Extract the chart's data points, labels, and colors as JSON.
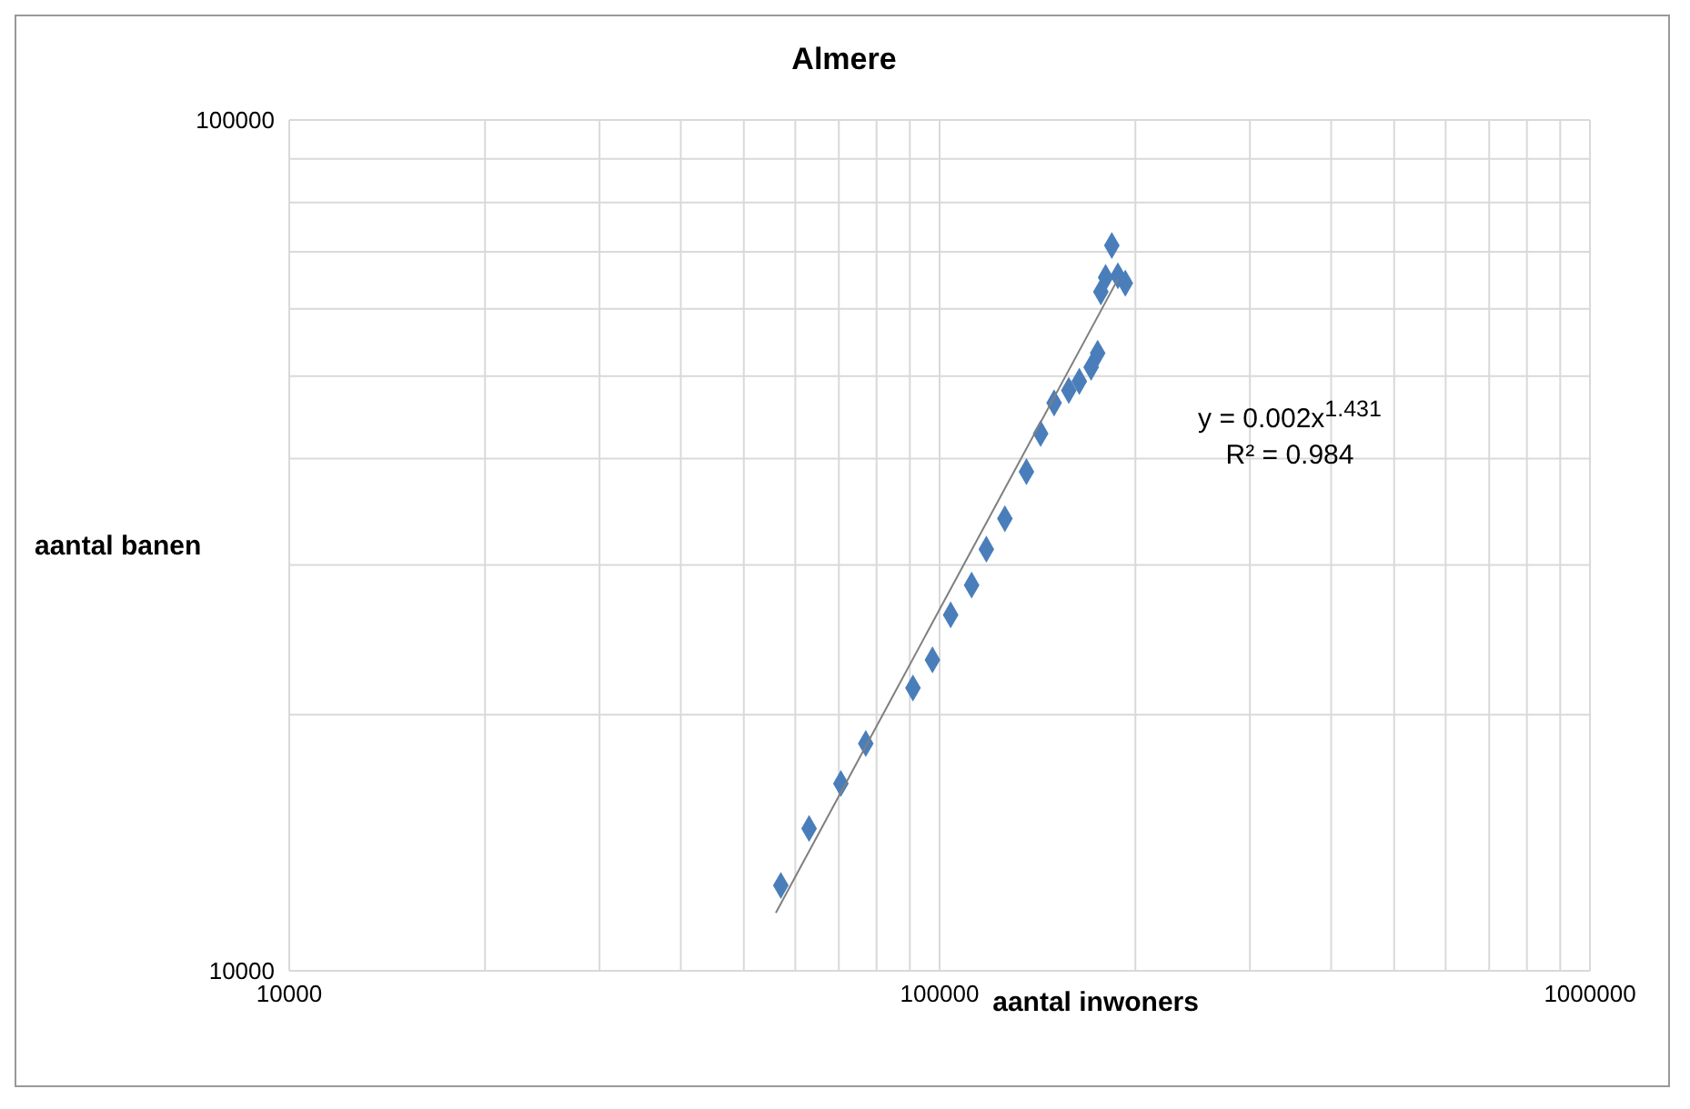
{
  "chart_data": {
    "type": "scatter",
    "title": "Almere",
    "xlabel": "aantal inwoners",
    "ylabel": "aantal banen",
    "annotations": [
      "y = 0.002x$^{1.431}$",
      "R² = 0.984"
    ],
    "log": "xy",
    "grid": true,
    "marker": "diamond",
    "xlim": [
      10000,
      1000000
    ],
    "xticks": [
      10000,
      {
        "value": 20000,
        "label": null
      },
      {
        "value": 30000,
        "label": null
      },
      {
        "value": 40000,
        "label": null
      },
      {
        "value": 50000,
        "label": null
      },
      {
        "value": 60000,
        "label": null
      },
      {
        "value": 70000,
        "label": null
      },
      {
        "value": 80000,
        "label": null
      },
      {
        "value": 90000,
        "label": null
      },
      100000,
      {
        "value": 200000,
        "label": null
      },
      {
        "value": 300000,
        "label": null
      },
      {
        "value": 400000,
        "label": null
      },
      {
        "value": 500000,
        "label": null
      },
      {
        "value": 600000,
        "label": null
      },
      {
        "value": 700000,
        "label": null
      },
      {
        "value": 800000,
        "label": null
      },
      {
        "value": 900000,
        "label": null
      },
      1000000
    ],
    "ylim": [
      10000,
      100000
    ],
    "yticks": [
      10000,
      {
        "value": 20000,
        "label": null
      },
      {
        "value": 30000,
        "label": null
      },
      {
        "value": 40000,
        "label": null
      },
      {
        "value": 50000,
        "label": null
      },
      {
        "value": 60000,
        "label": null
      },
      {
        "value": 70000,
        "label": null
      },
      {
        "value": 80000,
        "label": null
      },
      {
        "value": 90000,
        "label": null
      },
      100000
    ],
    "series": [
      {
        "color": "#4a7ebb",
        "x": [
          57000,
          63000,
          70500,
          77000,
          91000,
          97500,
          104000,
          112000,
          118000,
          126000,
          136000,
          143000,
          150000,
          158000,
          164000,
          171000,
          175000,
          177000,
          180000,
          184000,
          188000,
          193000
        ],
        "values": [
          12600,
          14700,
          16600,
          18500,
          21500,
          23200,
          26200,
          28400,
          31300,
          34000,
          38600,
          42800,
          46500,
          48100,
          49300,
          51200,
          53200,
          62800,
          65300,
          71200,
          65600,
          64300
        ]
      },
      {
        "type": "line",
        "marker": "none",
        "color": "#7f7f7f",
        "x": [
          56000,
          188000
        ],
        "values": [
          11700,
          65000
        ]
      }
    ]
  }
}
